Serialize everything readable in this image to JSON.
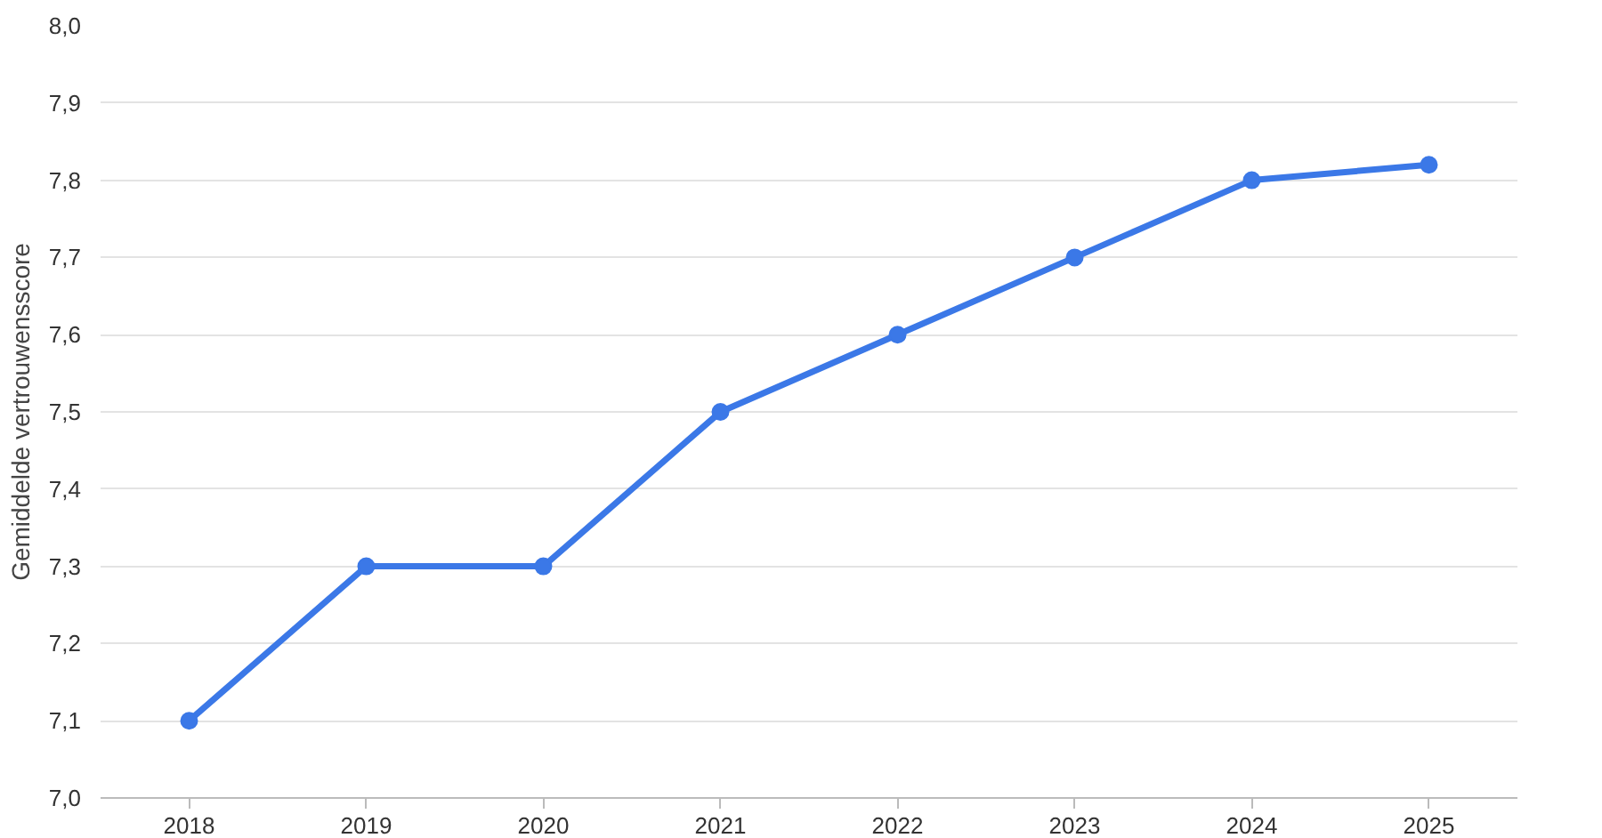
{
  "chart_data": {
    "type": "line",
    "ylabel": "Gemiddelde vertrouwensscore",
    "categories": [
      "2018",
      "2019",
      "2020",
      "2021",
      "2022",
      "2023",
      "2024",
      "2025"
    ],
    "series": [
      {
        "color": "#3b78e7",
        "values": [
          7.1,
          7.3,
          7.3,
          7.5,
          7.6,
          7.7,
          7.8,
          7.82
        ]
      }
    ],
    "ylim": [
      7.0,
      8.0
    ],
    "yticks": [
      {
        "value": 7.0,
        "label": "7,0"
      },
      {
        "value": 7.1,
        "label": "7,1"
      },
      {
        "value": 7.2,
        "label": "7,2"
      },
      {
        "value": 7.3,
        "label": "7,3"
      },
      {
        "value": 7.4,
        "label": "7,4"
      },
      {
        "value": 7.5,
        "label": "7,5"
      },
      {
        "value": 7.6,
        "label": "7,6"
      },
      {
        "value": 7.7,
        "label": "7,7"
      },
      {
        "value": 7.8,
        "label": "7,8"
      },
      {
        "value": 7.9,
        "label": "7,9"
      },
      {
        "value": 8.0,
        "label": "8,0"
      }
    ],
    "grid": "y",
    "marker": "circle",
    "line_style": "solid"
  }
}
